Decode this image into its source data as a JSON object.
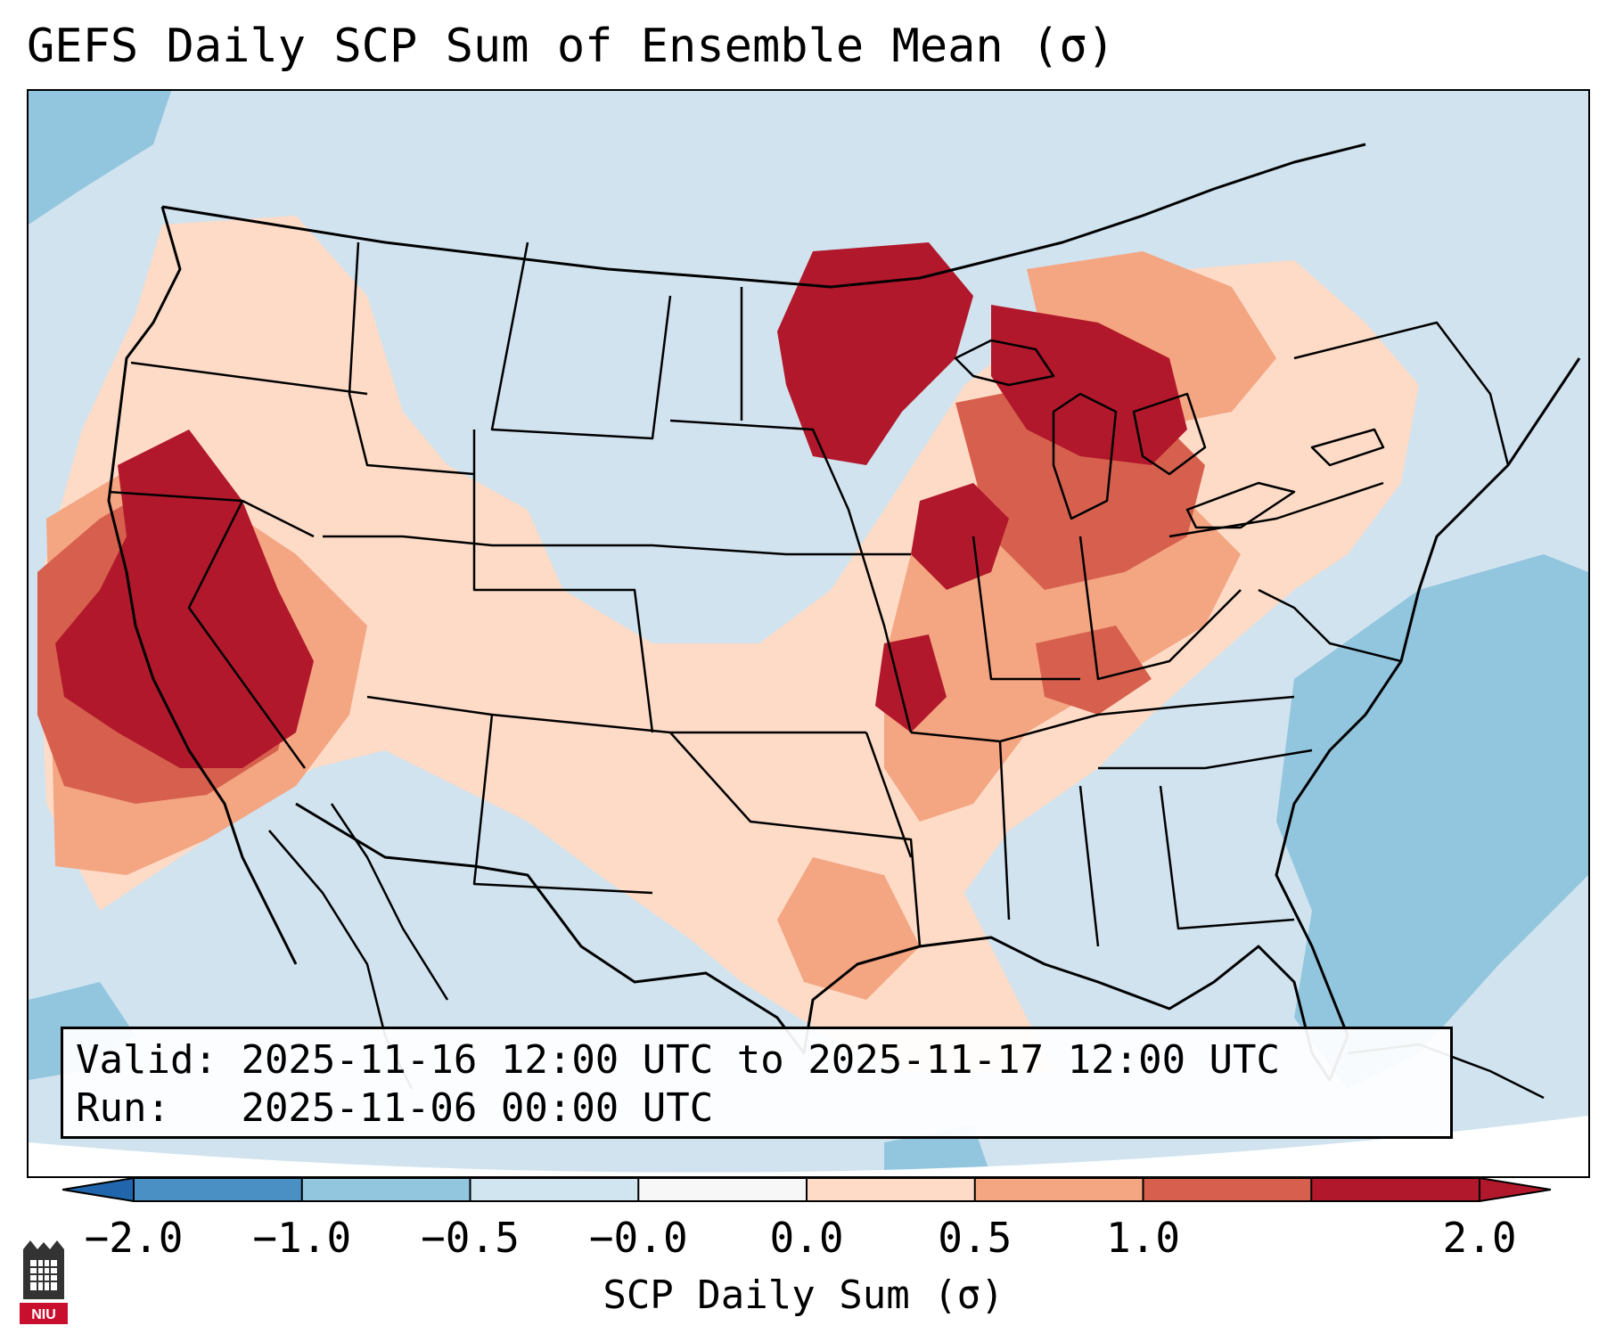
{
  "title": "GEFS Daily SCP Sum of Ensemble Mean (σ)",
  "info": {
    "valid_label": "Valid:",
    "valid_value": "2025-11-16 12:00 UTC to 2025-11-17 12:00 UTC",
    "run_label": "Run:",
    "run_value": "2025-11-06 00:00 UTC"
  },
  "colorbar": {
    "label": "SCP Daily Sum (σ)",
    "ticks": [
      "−2.0",
      "−1.0",
      "−0.5",
      "−0.0",
      "0.0",
      "0.5",
      "1.0",
      "2.0"
    ],
    "colors": [
      "#4a90c4",
      "#92c5de",
      "#d1e5f0",
      "#f7f7f7",
      "#fddbc7",
      "#f4a582",
      "#d6604d",
      "#b2182b"
    ],
    "extend_low_color": "#2166ac",
    "extend_high_color": "#b2182b"
  },
  "map": {
    "region": "Continental United States",
    "background_color": "#d0e3ef",
    "coast_color": "#000000"
  },
  "logo": {
    "text": "NIU"
  }
}
